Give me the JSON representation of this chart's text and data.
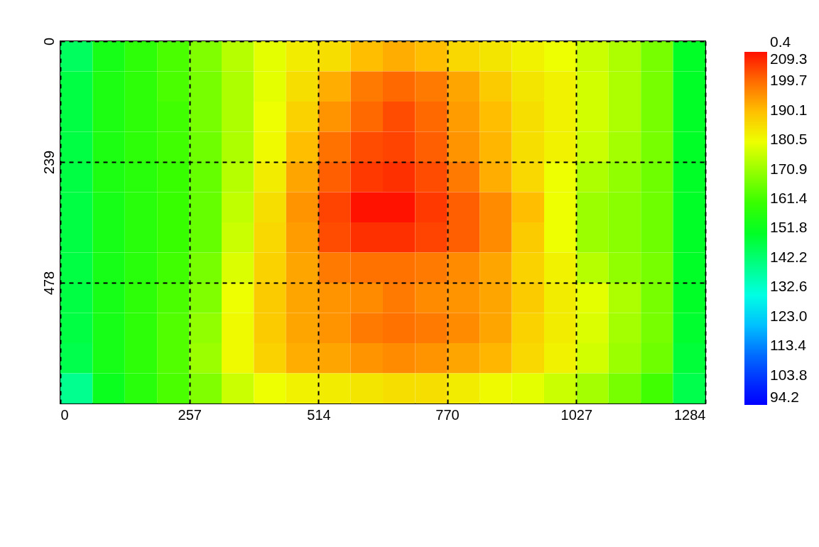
{
  "chart_data": {
    "type": "heatmap",
    "xlim": [
      0,
      1284
    ],
    "xticks": [
      0,
      257,
      514,
      770,
      1027,
      1284
    ],
    "ylim": [
      717,
      0
    ],
    "yticks": [
      0,
      239,
      478
    ],
    "grid": true,
    "clim": [
      94.2,
      209.3
    ],
    "cticks": [
      94.2,
      103.8,
      113.4,
      {
        "value": 123.0,
        "label": "123.0"
      },
      132.6,
      142.2,
      151.8,
      161.4,
      170.9,
      180.5,
      190.1,
      199.7,
      209.3
    ],
    "annotations": [
      "0.4"
    ],
    "cells": [
      [
        144,
        154,
        158,
        162,
        168,
        174,
        179,
        183,
        185,
        190,
        192,
        190,
        186,
        184,
        182,
        180,
        176,
        173,
        167,
        150
      ],
      [
        147,
        155,
        158,
        162,
        167,
        173,
        179,
        185,
        192,
        198,
        200,
        198,
        193,
        188,
        184,
        182,
        177,
        173,
        167,
        150
      ],
      [
        147,
        155,
        158,
        161,
        167,
        173,
        180,
        187,
        195,
        200,
        203,
        200,
        194,
        190,
        185,
        182,
        177,
        173,
        167,
        150
      ],
      [
        147,
        155,
        158,
        161,
        166,
        173,
        181,
        190,
        199,
        203,
        204,
        201,
        195,
        191,
        185,
        182,
        176,
        172,
        167,
        150
      ],
      [
        147,
        155,
        157,
        160,
        165,
        174,
        183,
        193,
        201,
        205,
        206,
        203,
        198,
        192,
        186,
        180,
        173,
        170,
        166,
        150
      ],
      [
        147,
        154,
        157,
        160,
        165,
        175,
        185,
        195,
        204,
        209,
        209,
        205,
        201,
        196,
        190,
        180,
        171,
        169,
        166,
        150
      ],
      [
        147,
        154,
        157,
        160,
        165,
        176,
        186,
        194,
        203,
        206,
        206,
        204,
        201,
        196,
        188,
        180,
        171,
        169,
        166,
        150
      ],
      [
        147,
        154,
        157,
        161,
        167,
        178,
        187,
        193,
        198,
        199,
        199,
        198,
        196,
        193,
        187,
        182,
        174,
        170,
        167,
        150
      ],
      [
        147,
        154,
        158,
        162,
        168,
        180,
        188,
        193,
        195,
        196,
        198,
        196,
        195,
        193,
        188,
        183,
        179,
        173,
        167,
        150
      ],
      [
        147,
        154,
        158,
        163,
        170,
        181,
        188,
        193,
        195,
        198,
        199,
        198,
        196,
        193,
        187,
        183,
        178,
        172,
        167,
        149
      ],
      [
        146,
        154,
        158,
        163,
        171,
        181,
        187,
        192,
        193,
        195,
        196,
        195,
        193,
        191,
        186,
        182,
        177,
        171,
        166,
        148
      ],
      [
        139,
        152,
        157,
        162,
        168,
        176,
        180,
        182,
        183,
        184,
        185,
        185,
        183,
        181,
        179,
        176,
        172,
        167,
        161,
        146
      ]
    ]
  }
}
